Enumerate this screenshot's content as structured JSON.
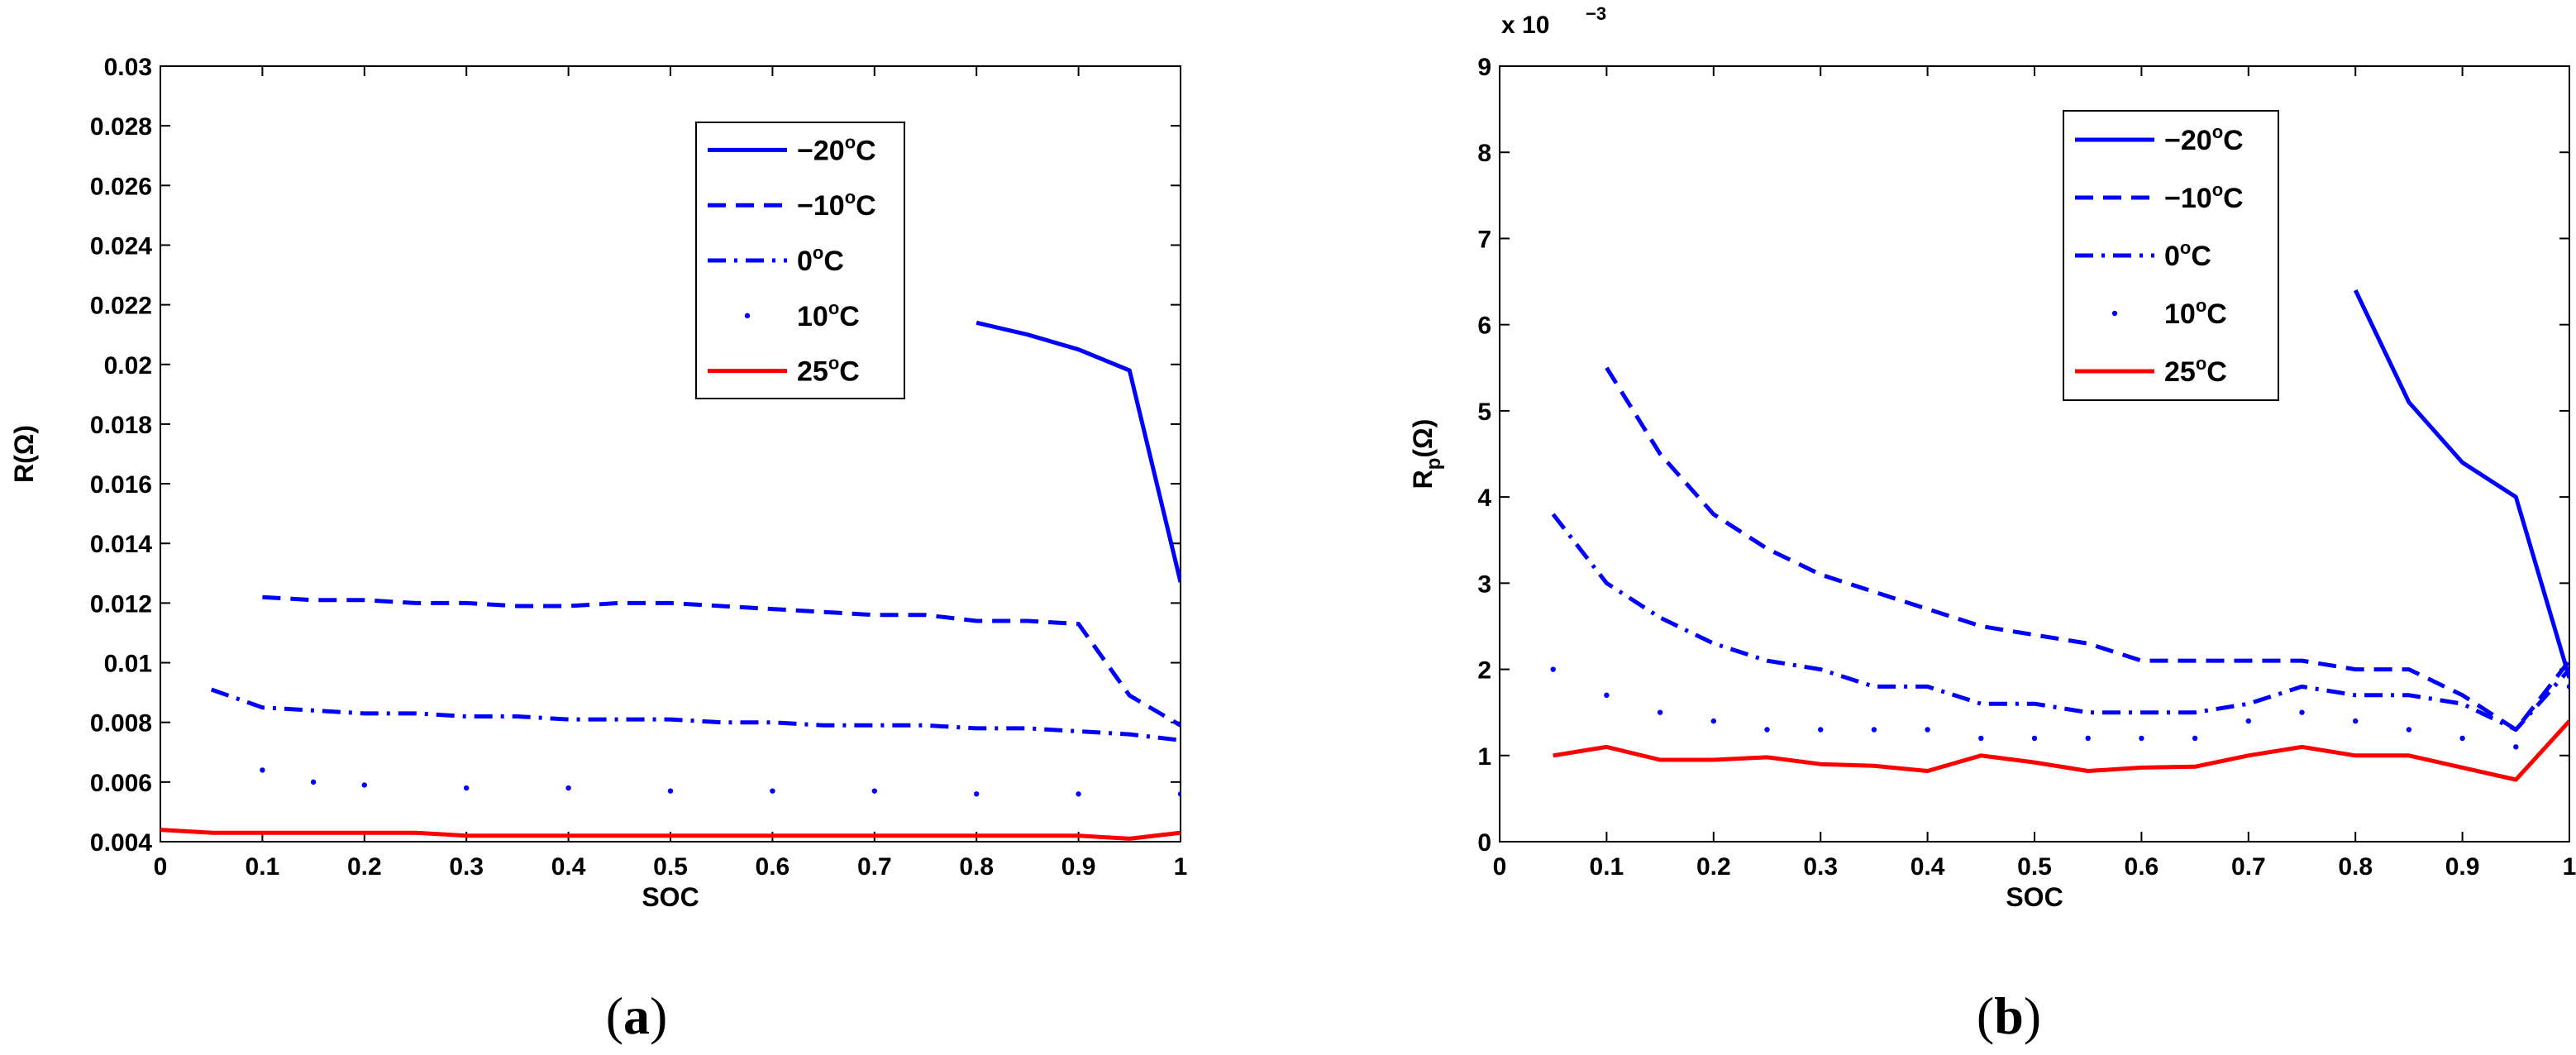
{
  "chart_data": [
    {
      "type": "line",
      "panel_label": "a",
      "xlabel": "SOC",
      "ylabel": "R(Ω)",
      "exponent_label": "",
      "xlim": [
        0,
        1
      ],
      "ylim": [
        0.004,
        0.03
      ],
      "xticks": [
        0,
        0.1,
        0.2,
        0.3,
        0.4,
        0.5,
        0.6,
        0.7,
        0.8,
        0.9,
        1
      ],
      "xtick_labels": [
        "0",
        "0.1",
        "0.2",
        "0.3",
        "0.4",
        "0.5",
        "0.6",
        "0.7",
        "0.8",
        "0.9",
        "1"
      ],
      "yticks": [
        0.004,
        0.006,
        0.008,
        0.01,
        0.012,
        0.014,
        0.016,
        0.018,
        0.02,
        0.022,
        0.024,
        0.026,
        0.028,
        0.03
      ],
      "ytick_labels": [
        "0.004",
        "0.006",
        "0.008",
        "0.01",
        "0.012",
        "0.014",
        "0.016",
        "0.018",
        "0.02",
        "0.022",
        "0.024",
        "0.026",
        "0.028",
        "0.03"
      ],
      "legend_position": "top-center",
      "series": [
        {
          "name": "−20",
          "unit": "C",
          "sup": "o",
          "color": "#0000ff",
          "style": "solid",
          "x": [
            0.8,
            0.85,
            0.9,
            0.95,
            1.0
          ],
          "y": [
            0.0214,
            0.021,
            0.0205,
            0.0198,
            0.0127
          ]
        },
        {
          "name": "−10",
          "unit": "C",
          "sup": "o",
          "color": "#0000ff",
          "style": "dashed",
          "x": [
            0.1,
            0.15,
            0.2,
            0.25,
            0.3,
            0.35,
            0.4,
            0.45,
            0.5,
            0.55,
            0.6,
            0.65,
            0.7,
            0.75,
            0.8,
            0.85,
            0.9,
            0.95,
            1.0
          ],
          "y": [
            0.0122,
            0.0121,
            0.0121,
            0.012,
            0.012,
            0.0119,
            0.0119,
            0.012,
            0.012,
            0.0119,
            0.0118,
            0.0117,
            0.0116,
            0.0116,
            0.0114,
            0.0114,
            0.0113,
            0.0089,
            0.0079
          ]
        },
        {
          "name": "0",
          "unit": "C",
          "sup": "o",
          "color": "#0000ff",
          "style": "dashdot",
          "x": [
            0.05,
            0.1,
            0.15,
            0.2,
            0.25,
            0.3,
            0.35,
            0.4,
            0.45,
            0.5,
            0.55,
            0.6,
            0.65,
            0.7,
            0.75,
            0.8,
            0.85,
            0.9,
            0.95,
            1.0
          ],
          "y": [
            0.0091,
            0.0085,
            0.0084,
            0.0083,
            0.0083,
            0.0082,
            0.0082,
            0.0081,
            0.0081,
            0.0081,
            0.008,
            0.008,
            0.0079,
            0.0079,
            0.0079,
            0.0078,
            0.0078,
            0.0077,
            0.0076,
            0.0074
          ]
        },
        {
          "name": "10",
          "unit": "C",
          "sup": "o",
          "color": "#0000ff",
          "style": "dotted",
          "x": [
            0.1,
            0.15,
            0.2,
            0.3,
            0.4,
            0.5,
            0.6,
            0.7,
            0.8,
            0.9,
            1.0
          ],
          "y": [
            0.0064,
            0.006,
            0.0059,
            0.0058,
            0.0058,
            0.0057,
            0.0057,
            0.0057,
            0.0056,
            0.0056,
            0.0056
          ]
        },
        {
          "name": "25",
          "unit": "C",
          "sup": "o",
          "color": "#ff0000",
          "style": "solid",
          "x": [
            0,
            0.05,
            0.1,
            0.15,
            0.2,
            0.25,
            0.3,
            0.35,
            0.4,
            0.45,
            0.5,
            0.55,
            0.6,
            0.65,
            0.7,
            0.75,
            0.8,
            0.85,
            0.9,
            0.95,
            1.0
          ],
          "y": [
            0.0044,
            0.0043,
            0.0043,
            0.0043,
            0.0043,
            0.0043,
            0.0042,
            0.0042,
            0.0042,
            0.0042,
            0.0042,
            0.0042,
            0.0042,
            0.0042,
            0.0042,
            0.0042,
            0.0042,
            0.0042,
            0.0042,
            0.0041,
            0.0043
          ]
        }
      ]
    },
    {
      "type": "line",
      "panel_label": "b",
      "xlabel": "SOC",
      "ylabel": "R_p(Ω)",
      "ylabel_main": "R",
      "ylabel_sub": "p",
      "ylabel_rest": "(Ω)",
      "exponent_label": "x 10",
      "exponent_sup": "−3",
      "xlim": [
        0,
        1
      ],
      "ylim": [
        0,
        9
      ],
      "xticks": [
        0,
        0.1,
        0.2,
        0.3,
        0.4,
        0.5,
        0.6,
        0.7,
        0.8,
        0.9,
        1
      ],
      "xtick_labels": [
        "0",
        "0.1",
        "0.2",
        "0.3",
        "0.4",
        "0.5",
        "0.6",
        "0.7",
        "0.8",
        "0.9",
        "1"
      ],
      "yticks": [
        0,
        1,
        2,
        3,
        4,
        5,
        6,
        7,
        8,
        9
      ],
      "ytick_labels": [
        "0",
        "1",
        "2",
        "3",
        "4",
        "5",
        "6",
        "7",
        "8",
        "9"
      ],
      "legend_position": "top-center",
      "series": [
        {
          "name": "−20",
          "unit": "C",
          "sup": "o",
          "color": "#0000ff",
          "style": "solid",
          "x": [
            0.8,
            0.85,
            0.9,
            0.95,
            1.0
          ],
          "y": [
            6.4,
            5.1,
            4.4,
            4.0,
            1.9
          ]
        },
        {
          "name": "−10",
          "unit": "C",
          "sup": "o",
          "color": "#0000ff",
          "style": "dashed",
          "x": [
            0.1,
            0.15,
            0.2,
            0.25,
            0.3,
            0.35,
            0.4,
            0.45,
            0.5,
            0.55,
            0.6,
            0.65,
            0.7,
            0.75,
            0.8,
            0.85,
            0.9,
            0.95,
            1.0
          ],
          "y": [
            5.5,
            4.5,
            3.8,
            3.4,
            3.1,
            2.9,
            2.7,
            2.5,
            2.4,
            2.3,
            2.1,
            2.1,
            2.1,
            2.1,
            2.0,
            2.0,
            1.7,
            1.3,
            2.1
          ]
        },
        {
          "name": "0",
          "unit": "C",
          "sup": "o",
          "color": "#0000ff",
          "style": "dashdot",
          "x": [
            0.05,
            0.1,
            0.15,
            0.2,
            0.25,
            0.3,
            0.35,
            0.4,
            0.45,
            0.5,
            0.55,
            0.6,
            0.65,
            0.7,
            0.75,
            0.8,
            0.85,
            0.9,
            0.95,
            1.0
          ],
          "y": [
            3.8,
            3.0,
            2.6,
            2.3,
            2.1,
            2.0,
            1.8,
            1.8,
            1.6,
            1.6,
            1.5,
            1.5,
            1.5,
            1.6,
            1.8,
            1.7,
            1.7,
            1.6,
            1.3,
            2.0
          ]
        },
        {
          "name": "10",
          "unit": "C",
          "sup": "o",
          "color": "#0000ff",
          "style": "dotted",
          "x": [
            0.05,
            0.1,
            0.15,
            0.2,
            0.25,
            0.3,
            0.35,
            0.4,
            0.45,
            0.5,
            0.55,
            0.6,
            0.65,
            0.7,
            0.75,
            0.8,
            0.85,
            0.9,
            0.95,
            1.0
          ],
          "y": [
            2.0,
            1.7,
            1.5,
            1.4,
            1.3,
            1.3,
            1.3,
            1.3,
            1.2,
            1.2,
            1.2,
            1.2,
            1.2,
            1.4,
            1.5,
            1.4,
            1.3,
            1.2,
            1.1,
            1.8
          ]
        },
        {
          "name": "25",
          "unit": "C",
          "sup": "o",
          "color": "#ff0000",
          "style": "solid",
          "x": [
            0.05,
            0.1,
            0.15,
            0.2,
            0.25,
            0.3,
            0.35,
            0.4,
            0.45,
            0.5,
            0.55,
            0.6,
            0.65,
            0.7,
            0.75,
            0.8,
            0.85,
            0.9,
            0.95,
            1.0
          ],
          "y": [
            1.0,
            1.1,
            0.95,
            0.95,
            0.98,
            0.9,
            0.88,
            0.82,
            1.0,
            0.92,
            0.82,
            0.86,
            0.87,
            1.0,
            1.1,
            1.0,
            1.0,
            0.86,
            0.72,
            1.4
          ]
        }
      ]
    }
  ]
}
